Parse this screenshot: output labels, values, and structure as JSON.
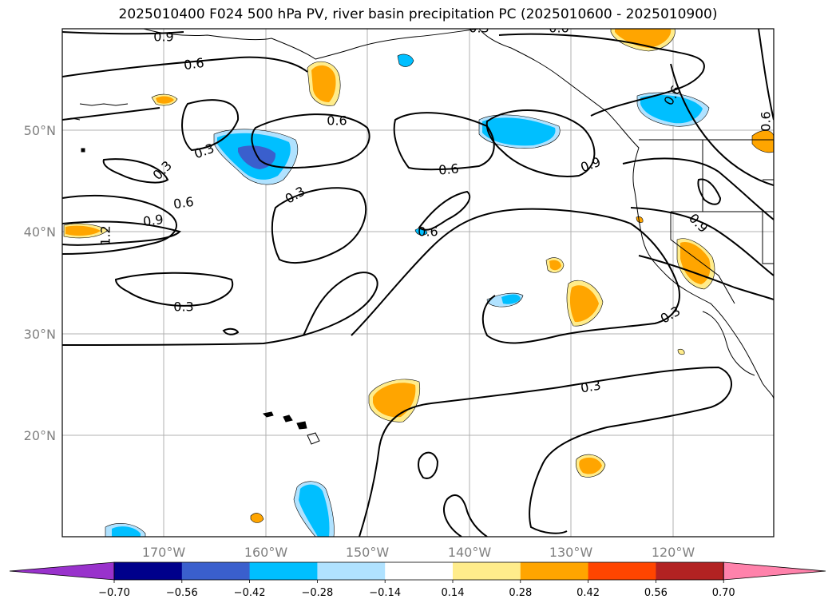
{
  "title": "2025010400 F024 500 hPa PV, river basin precipitation PC (2025010600 - 2025010900)",
  "map": {
    "lat_labels": [
      "50°N",
      "40°N",
      "30°N",
      "20°N"
    ],
    "lon_labels": [
      "170°W",
      "160°W",
      "150°W",
      "140°W",
      "130°W",
      "120°W"
    ],
    "contour_labels": [
      "0.9",
      "0.6",
      "0.6",
      "0.3",
      "0.3",
      "0.3",
      "0.6",
      "0.9",
      "0.3",
      "0.6",
      "0.9",
      "0.6",
      "0.3",
      "0.3",
      "1.2",
      "0.6",
      "0.6",
      "0.9",
      "0.3",
      "0.6"
    ]
  },
  "colorbar": {
    "ticks": [
      "−0.70",
      "−0.56",
      "−0.42",
      "−0.28",
      "−0.14",
      "0.14",
      "0.28",
      "0.42",
      "0.56",
      "0.70"
    ],
    "colors": [
      "#9932cc",
      "#00008b",
      "#3a5fcd",
      "#00bfff",
      "#b0e2ff",
      "#ffffff",
      "#ffec8b",
      "#ffa500",
      "#ff4500",
      "#b22222",
      "#ff82ab"
    ]
  }
}
